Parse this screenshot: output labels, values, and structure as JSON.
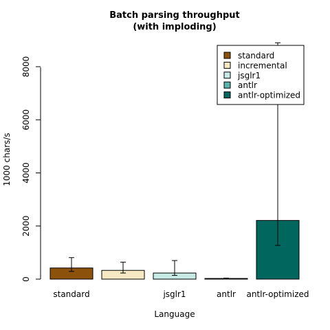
{
  "chart_data": {
    "type": "bar",
    "title_line1": "Batch parsing throughput",
    "title_line2": "(with imploding)",
    "xlabel": "Language",
    "ylabel": "1000 chars/s",
    "ylim": [
      0,
      9000
    ],
    "yticks": [
      "0",
      "2000",
      "4000",
      "6000",
      "8000"
    ],
    "categories": [
      "standard",
      "incremental",
      "jsglr1",
      "antlr",
      "antlr-optimized"
    ],
    "category_labels_shown": [
      "standard",
      "",
      "jsglr1",
      "antlr",
      "antlr-optimized"
    ],
    "values": [
      420,
      330,
      230,
      25,
      2210
    ],
    "error_low": [
      290,
      230,
      140,
      15,
      1270
    ],
    "error_high": [
      810,
      640,
      700,
      40,
      8900
    ],
    "colors": [
      "#8c510a",
      "#f6e8c3",
      "#c7eae5",
      "#5ab4ac",
      "#01665e"
    ],
    "legend": {
      "placement": "top-right",
      "entries": [
        "standard",
        "incremental",
        "jsglr1",
        "antlr",
        "antlr-optimized"
      ]
    },
    "grid": false
  }
}
